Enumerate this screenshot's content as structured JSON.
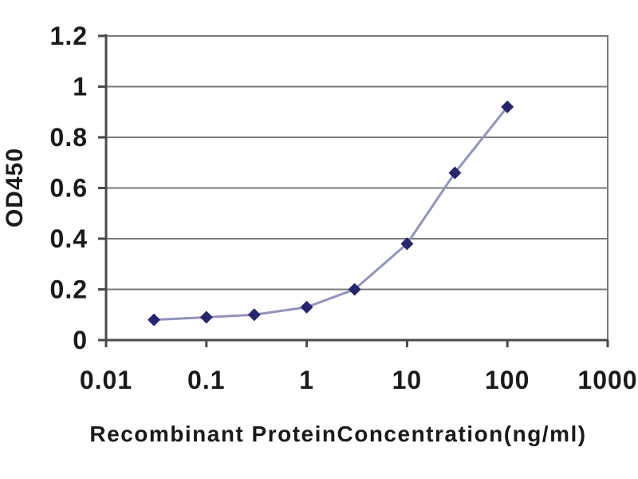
{
  "chart_data": {
    "type": "line",
    "x_scale": "log",
    "x": [
      0.03,
      0.1,
      0.3,
      1,
      3,
      10,
      30,
      100
    ],
    "y": [
      0.08,
      0.09,
      0.1,
      0.13,
      0.2,
      0.38,
      0.66,
      0.92
    ],
    "xlabel": "Recombinant ProteinConcentration(ng/ml)",
    "ylabel": "OD450",
    "xlim": [
      0.01,
      1000
    ],
    "ylim": [
      0,
      1.2
    ],
    "x_ticks": [
      0.01,
      0.1,
      1,
      10,
      100,
      1000
    ],
    "x_tick_labels": [
      "0.01",
      "0.1",
      "1",
      "10",
      "100",
      "1000"
    ],
    "y_ticks": [
      0,
      0.2,
      0.4,
      0.6,
      0.8,
      1,
      1.2
    ],
    "y_tick_labels": [
      "0",
      "0.2",
      "0.4",
      "0.6",
      "0.8",
      "1",
      "1.2"
    ],
    "grid": "horizontal",
    "legend": "none",
    "marker": "diamond",
    "colors": {
      "line": "#9393bd",
      "marker": "#26266e",
      "gridline": "#7a7a7a",
      "axis": "#4a4a4a",
      "text": "#1a1a1a",
      "background": "#ffffff"
    }
  }
}
